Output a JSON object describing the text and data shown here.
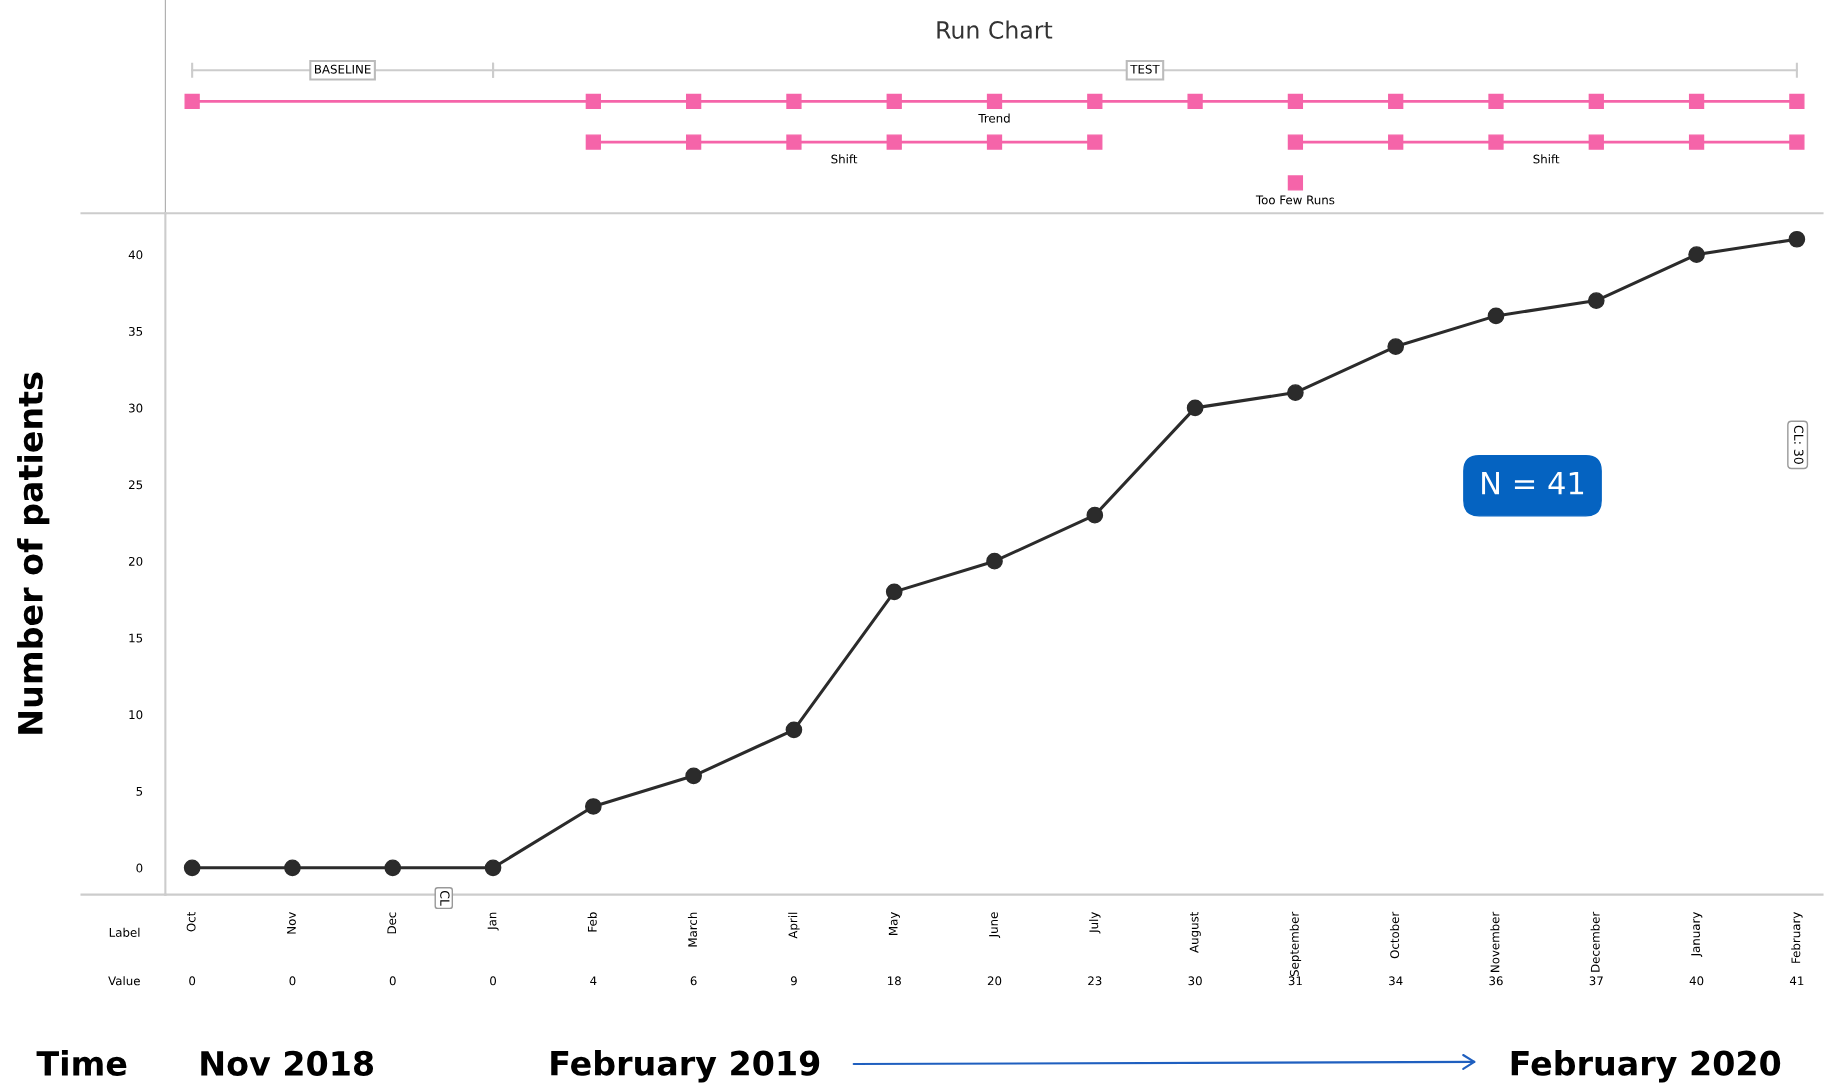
{
  "chart_data": [
    {
      "type": "other",
      "title": "Run Chart",
      "annotations": [
        "BASELINE",
        "TEST",
        "Trend",
        "Shift",
        "Shift",
        "Too Few Runs"
      ]
    },
    {
      "type": "line",
      "ylabel": "Number of patients",
      "marker": "circle",
      "grid": false,
      "data_labels": true,
      "categories": [
        "Oct",
        "Nov",
        "Dec",
        "Jan",
        "Feb",
        "March",
        "April",
        "May",
        "June",
        "July",
        "August",
        "September",
        "October",
        "November",
        "December",
        "January",
        "February"
      ],
      "values": [
        0,
        0,
        0,
        0,
        4,
        6,
        9,
        18,
        20,
        23,
        30,
        31,
        34,
        36,
        37,
        40,
        41
      ],
      "color": "#2b2b2b",
      "ylim": [
        -1.75,
        42.7
      ],
      "yticks": [
        0,
        5,
        10,
        15,
        20,
        25,
        30,
        35,
        40
      ],
      "annotations": [
        "N = 41",
        "CL: 30",
        "CL",
        "Label",
        "Value",
        "Time",
        "Nov 2018",
        "February 2019",
        "February 2020"
      ]
    }
  ]
}
